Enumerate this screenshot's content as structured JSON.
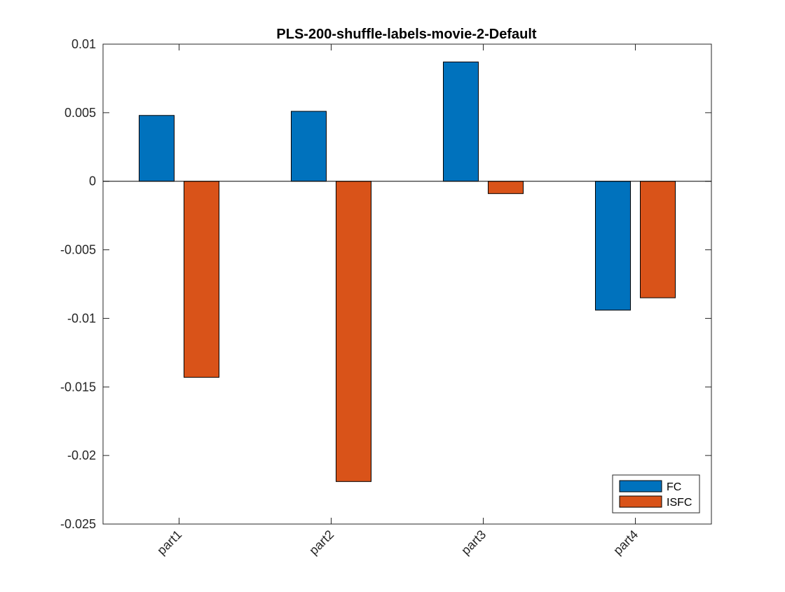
{
  "chart_data": {
    "type": "bar",
    "title": "PLS-200-shuffle-labels-movie-2-Default",
    "xlabel": "",
    "ylabel": "",
    "categories": [
      "part1",
      "part2",
      "part3",
      "part4"
    ],
    "series": [
      {
        "name": "FC",
        "values": [
          0.0048,
          0.0051,
          0.0087,
          -0.0094
        ]
      },
      {
        "name": "ISFC",
        "values": [
          -0.0143,
          -0.0219,
          -0.0009,
          -0.0085
        ]
      }
    ],
    "ylim": [
      -0.025,
      0.01
    ],
    "yticks": [
      0.01,
      0.005,
      0,
      -0.005,
      -0.01,
      -0.015,
      -0.02,
      -0.025
    ],
    "ytick_labels": [
      "0.01",
      "0.005",
      "0",
      "-0.005",
      "-0.01",
      "-0.015",
      "-0.02",
      "-0.025"
    ],
    "grid": false,
    "legend_position": "bottom-right",
    "colors": {
      "FC": "#0072BD",
      "ISFC": "#D95319"
    }
  }
}
